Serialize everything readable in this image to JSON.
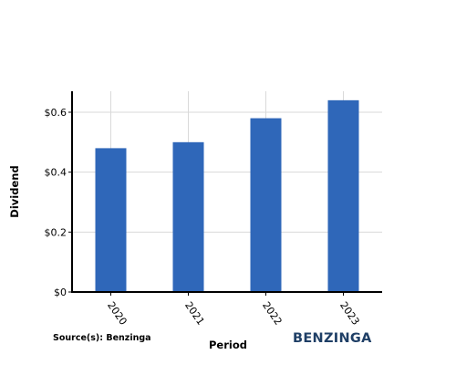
{
  "chart_data": {
    "type": "bar",
    "categories": [
      "2020",
      "2021",
      "2022",
      "2023"
    ],
    "values": [
      0.48,
      0.5,
      0.58,
      0.64
    ],
    "xlabel": "Period",
    "ylabel": "Dividend",
    "ylim": [
      0,
      0.67
    ],
    "yticks": [
      0,
      0.2,
      0.4,
      0.6
    ],
    "ytick_labels": [
      "$0",
      "$0.2",
      "$0.4",
      "$0.6"
    ],
    "grid": true,
    "bar_color": "#2f67b9",
    "grid_color": "#d9d9d9"
  },
  "footer": {
    "source": "Source(s): Benzinga",
    "brand": "BENZINGA",
    "brand_color": "#1f3f66"
  }
}
